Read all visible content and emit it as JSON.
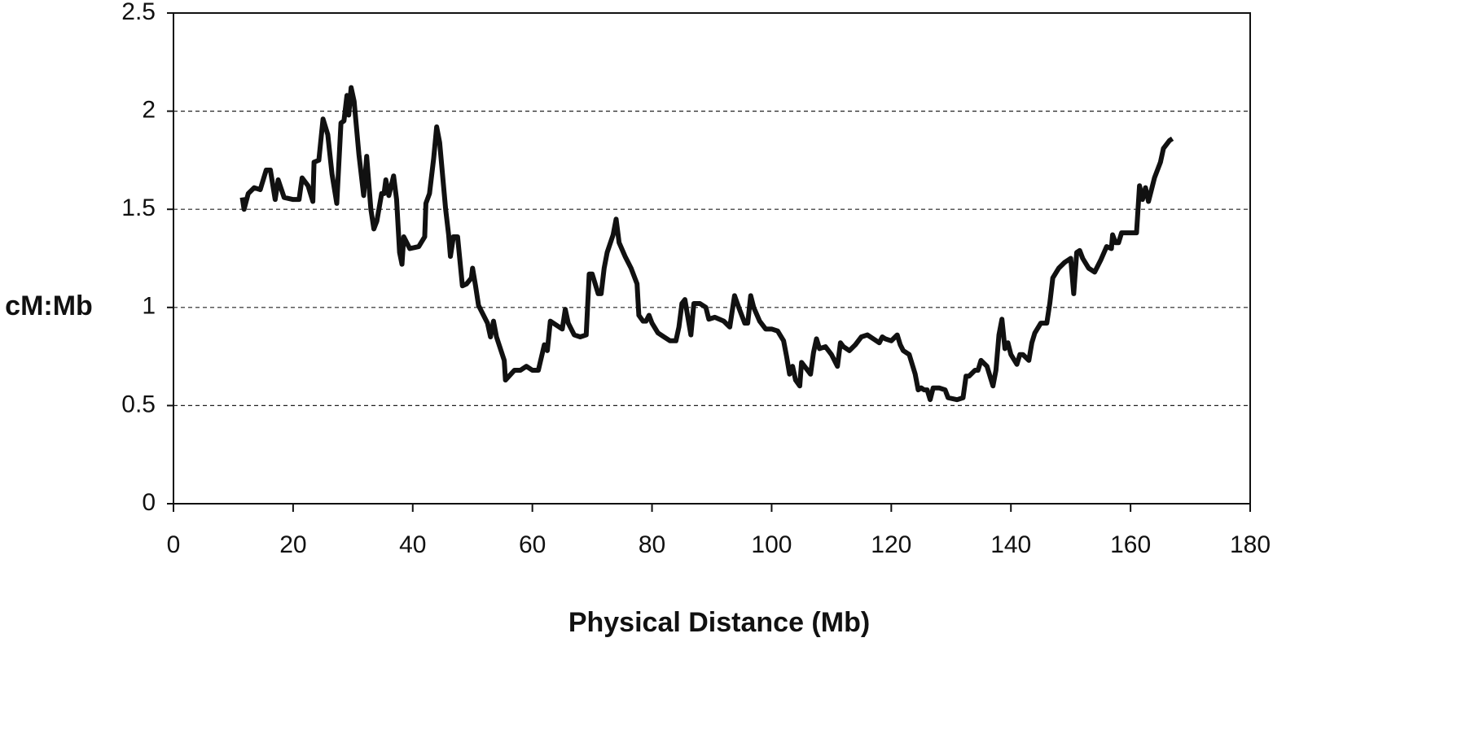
{
  "chart_data": {
    "type": "line",
    "xlabel": "Physical Distance (Mb)",
    "ylabel": "cM:Mb",
    "xlim": [
      0,
      180
    ],
    "xticks": [
      0,
      20,
      40,
      60,
      80,
      100,
      120,
      140,
      160,
      180
    ],
    "ylim": [
      0,
      2.5
    ],
    "yticks": [
      0,
      0.5,
      1,
      1.5,
      2,
      2.5
    ],
    "grid": true,
    "series": [
      {
        "color": "#111111",
        "x": [
          11.5,
          11.8,
          12.5,
          13.5,
          14.5,
          15.5,
          16.2,
          17,
          17.5,
          18.5,
          20,
          21,
          21.5,
          22.5,
          23.3,
          23.5,
          24.3,
          25,
          25.8,
          26.5,
          27.3,
          28,
          28.5,
          29,
          29.3,
          29.7,
          30.2,
          31,
          31.8,
          32.3,
          33,
          33.5,
          34,
          34.8,
          35.2,
          35.5,
          36,
          36.8,
          37.3,
          37.8,
          38.2,
          38.5,
          39.5,
          41,
          42,
          42.2,
          42.8,
          43.5,
          44,
          44.5,
          45.5,
          46,
          46.3,
          46.8,
          47.5,
          48.3,
          49,
          49.8,
          50,
          50.5,
          51,
          52,
          52.5,
          53,
          53.5,
          54,
          55.3,
          55.5,
          57,
          58,
          59,
          60,
          61,
          62,
          62.5,
          63,
          64,
          65,
          65.5,
          66,
          67,
          68,
          69,
          69.5,
          70,
          71,
          71.5,
          72,
          72.5,
          73.5,
          74,
          74.5,
          75.5,
          76.5,
          77.5,
          77.8,
          78.5,
          79,
          79.5,
          80,
          81,
          82,
          83,
          84,
          84.5,
          85,
          85.5,
          86,
          86.5,
          87,
          88,
          89,
          89.5,
          90.5,
          92,
          93,
          93.8,
          94.5,
          95.5,
          96,
          96.5,
          97,
          98,
          99,
          100,
          101,
          102,
          102.5,
          103,
          103.5,
          104,
          104.7,
          105,
          106,
          106.5,
          107,
          107.5,
          108,
          109,
          110,
          111,
          111.5,
          112,
          113,
          114,
          115,
          116,
          117,
          118,
          118.5,
          119,
          120,
          121,
          121.5,
          122,
          123,
          124,
          124.5,
          125,
          125.5,
          126,
          126.5,
          127,
          128,
          129,
          129.5,
          131,
          132,
          132.5,
          133,
          134,
          134.5,
          135,
          136,
          137,
          137.5,
          138,
          138.5,
          139,
          139.5,
          140,
          141,
          141.5,
          142,
          143,
          143.5,
          144,
          145,
          146,
          146.5,
          147,
          148,
          149,
          150,
          150.5,
          151,
          151.5,
          152,
          153,
          154,
          155,
          156,
          156.8,
          157,
          157.5,
          158,
          158.5,
          160,
          161,
          161.5,
          162,
          162.5,
          163,
          163.5,
          164,
          165,
          165.5,
          166.5,
          167
        ],
        "values": [
          1.56,
          1.5,
          1.58,
          1.61,
          1.6,
          1.7,
          1.7,
          1.55,
          1.65,
          1.56,
          1.55,
          1.55,
          1.66,
          1.62,
          1.54,
          1.74,
          1.75,
          1.96,
          1.88,
          1.68,
          1.53,
          1.94,
          1.95,
          2.08,
          1.98,
          2.12,
          2.05,
          1.78,
          1.57,
          1.77,
          1.5,
          1.4,
          1.44,
          1.58,
          1.58,
          1.65,
          1.57,
          1.67,
          1.55,
          1.28,
          1.22,
          1.36,
          1.3,
          1.31,
          1.36,
          1.53,
          1.58,
          1.76,
          1.92,
          1.84,
          1.5,
          1.37,
          1.26,
          1.36,
          1.36,
          1.11,
          1.12,
          1.15,
          1.2,
          1.11,
          1.01,
          0.95,
          0.92,
          0.85,
          0.93,
          0.85,
          0.73,
          0.63,
          0.68,
          0.68,
          0.7,
          0.68,
          0.68,
          0.81,
          0.78,
          0.93,
          0.91,
          0.89,
          0.99,
          0.92,
          0.86,
          0.85,
          0.86,
          1.17,
          1.17,
          1.07,
          1.07,
          1.2,
          1.28,
          1.37,
          1.45,
          1.33,
          1.26,
          1.2,
          1.12,
          0.96,
          0.93,
          0.93,
          0.96,
          0.92,
          0.87,
          0.85,
          0.83,
          0.83,
          0.9,
          1.02,
          1.04,
          0.95,
          0.86,
          1.02,
          1.02,
          1.0,
          0.94,
          0.95,
          0.93,
          0.9,
          1.06,
          1.0,
          0.92,
          0.92,
          1.06,
          1.0,
          0.93,
          0.89,
          0.89,
          0.88,
          0.83,
          0.75,
          0.66,
          0.7,
          0.63,
          0.6,
          0.72,
          0.68,
          0.66,
          0.77,
          0.84,
          0.79,
          0.8,
          0.76,
          0.7,
          0.82,
          0.8,
          0.78,
          0.81,
          0.85,
          0.86,
          0.84,
          0.82,
          0.85,
          0.84,
          0.83,
          0.86,
          0.81,
          0.78,
          0.76,
          0.66,
          0.58,
          0.59,
          0.58,
          0.58,
          0.53,
          0.59,
          0.59,
          0.58,
          0.54,
          0.53,
          0.54,
          0.65,
          0.65,
          0.68,
          0.68,
          0.73,
          0.7,
          0.6,
          0.68,
          0.86,
          0.94,
          0.79,
          0.82,
          0.76,
          0.71,
          0.76,
          0.76,
          0.73,
          0.82,
          0.87,
          0.92,
          0.92,
          1.02,
          1.15,
          1.2,
          1.23,
          1.25,
          1.07,
          1.28,
          1.29,
          1.25,
          1.2,
          1.18,
          1.24,
          1.31,
          1.3,
          1.37,
          1.33,
          1.33,
          1.38,
          1.38,
          1.38,
          1.62,
          1.55,
          1.61,
          1.54,
          1.6,
          1.66,
          1.74,
          1.81,
          1.85,
          1.86
        ]
      }
    ]
  }
}
